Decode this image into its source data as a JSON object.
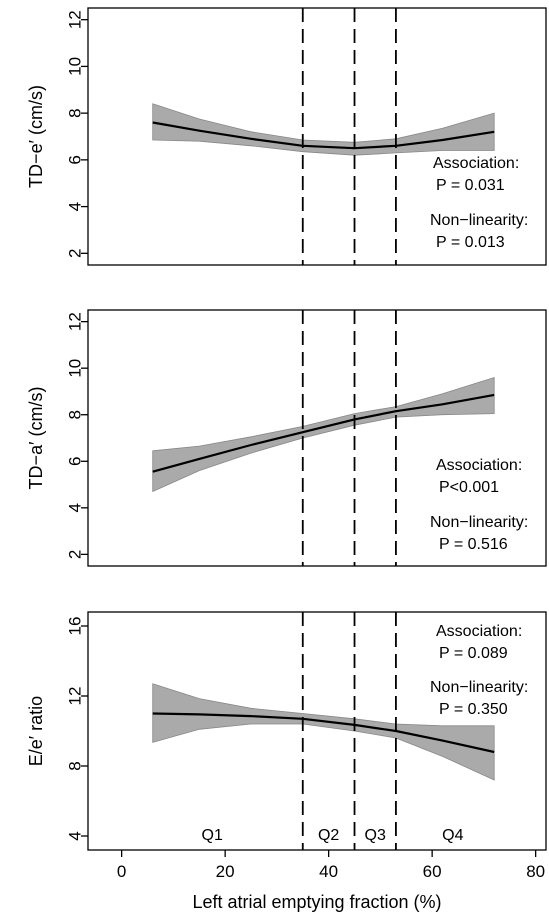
{
  "chart_data": [
    {
      "type": "line",
      "ylabel": "TD−e′ (cm/s)",
      "xlim": [
        -6.5,
        82
      ],
      "ylim": [
        1.5,
        12.5
      ],
      "yticks": [
        2,
        4,
        6,
        8,
        10,
        12
      ],
      "ytick_labels": [
        "2",
        "4",
        "6",
        "8",
        "10",
        "12"
      ],
      "vlines": [
        35,
        45,
        53
      ],
      "series": [
        {
          "x": [
            6,
            15,
            25,
            35,
            45,
            53,
            62,
            72
          ],
          "y": [
            7.6,
            7.25,
            6.9,
            6.6,
            6.5,
            6.6,
            6.85,
            7.2
          ],
          "lower": [
            6.85,
            6.8,
            6.6,
            6.35,
            6.2,
            6.3,
            6.4,
            6.4
          ],
          "upper": [
            8.4,
            7.75,
            7.2,
            6.85,
            6.75,
            6.9,
            7.35,
            8.0
          ]
        }
      ],
      "annotations": [
        "Association:",
        "P = 0.031",
        "Non−linearity:",
        "P = 0.013"
      ]
    },
    {
      "type": "line",
      "ylabel": "TD−a′ (cm/s)",
      "xlim": [
        -6.5,
        82
      ],
      "ylim": [
        1.5,
        12.5
      ],
      "yticks": [
        2,
        4,
        6,
        8,
        10,
        12
      ],
      "ytick_labels": [
        "2",
        "4",
        "6",
        "8",
        "10",
        "12"
      ],
      "vlines": [
        35,
        45,
        53
      ],
      "series": [
        {
          "x": [
            6,
            15,
            25,
            35,
            45,
            53,
            62,
            72
          ],
          "y": [
            5.55,
            6.1,
            6.7,
            7.25,
            7.8,
            8.15,
            8.45,
            8.85
          ],
          "lower": [
            4.7,
            5.6,
            6.35,
            7.0,
            7.55,
            7.9,
            8.0,
            8.05
          ],
          "upper": [
            6.45,
            6.65,
            7.05,
            7.5,
            8.05,
            8.35,
            8.9,
            9.6
          ]
        }
      ],
      "annotations": [
        "Association:",
        "P<0.001",
        "Non−linearity:",
        "P = 0.516"
      ]
    },
    {
      "type": "line",
      "ylabel": "E/e′ ratio",
      "xlabel": "Left atrial emptying fraction (%)",
      "xlim": [
        -6.5,
        82
      ],
      "ylim": [
        3.2,
        16.8
      ],
      "xticks": [
        0,
        20,
        40,
        60,
        80
      ],
      "xtick_labels": [
        "0",
        "20",
        "40",
        "60",
        "80"
      ],
      "yticks": [
        4,
        8,
        12,
        16
      ],
      "ytick_labels": [
        "4",
        "8",
        "12",
        "16"
      ],
      "vlines": [
        35,
        45,
        53
      ],
      "series": [
        {
          "x": [
            6,
            15,
            25,
            35,
            45,
            53,
            62,
            72
          ],
          "y": [
            11.0,
            10.95,
            10.85,
            10.7,
            10.35,
            10.0,
            9.45,
            8.8
          ],
          "lower": [
            9.35,
            10.1,
            10.4,
            10.4,
            10.0,
            9.6,
            8.55,
            7.2
          ],
          "upper": [
            12.7,
            11.85,
            11.3,
            11.0,
            10.7,
            10.4,
            10.3,
            10.3
          ]
        }
      ],
      "annotations": [
        "Association:",
        "P = 0.089",
        "Non−linearity:",
        "P = 0.350"
      ],
      "quartile_labels": [
        "Q1",
        "Q2",
        "Q3",
        "Q4"
      ]
    }
  ],
  "colors": {
    "line": "#000000",
    "band": "#aaaaaa",
    "band_edge": "#888888",
    "axis": "#000000"
  }
}
